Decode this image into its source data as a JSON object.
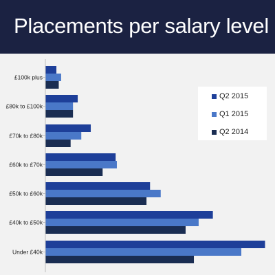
{
  "header": {
    "title": "Placements per salary level",
    "background": "#1b2242"
  },
  "chart_data": {
    "type": "bar",
    "orientation": "horizontal",
    "title": "Placements per salary level",
    "categories": [
      "£100k plus",
      "£80k to £100k",
      "£70k to £80k",
      "£60k to £70k",
      "£50k to £60k",
      "£40k to £50k",
      "Under £40k"
    ],
    "series": [
      {
        "name": "Q2 2015",
        "color": "#1e3f99",
        "values": [
          9,
          27,
          38,
          59,
          88,
          141,
          185
        ]
      },
      {
        "name": "Q1 2015",
        "color": "#4a78c8",
        "values": [
          13,
          23,
          30,
          60,
          97,
          129,
          165
        ]
      },
      {
        "name": "Q2 2014",
        "color": "#1a2d52",
        "values": [
          11,
          23,
          21,
          48,
          85,
          118,
          125
        ]
      }
    ],
    "xlim": [
      0,
      185
    ],
    "legend": "right",
    "grid": false,
    "axis_color": "#bfbfbf"
  }
}
